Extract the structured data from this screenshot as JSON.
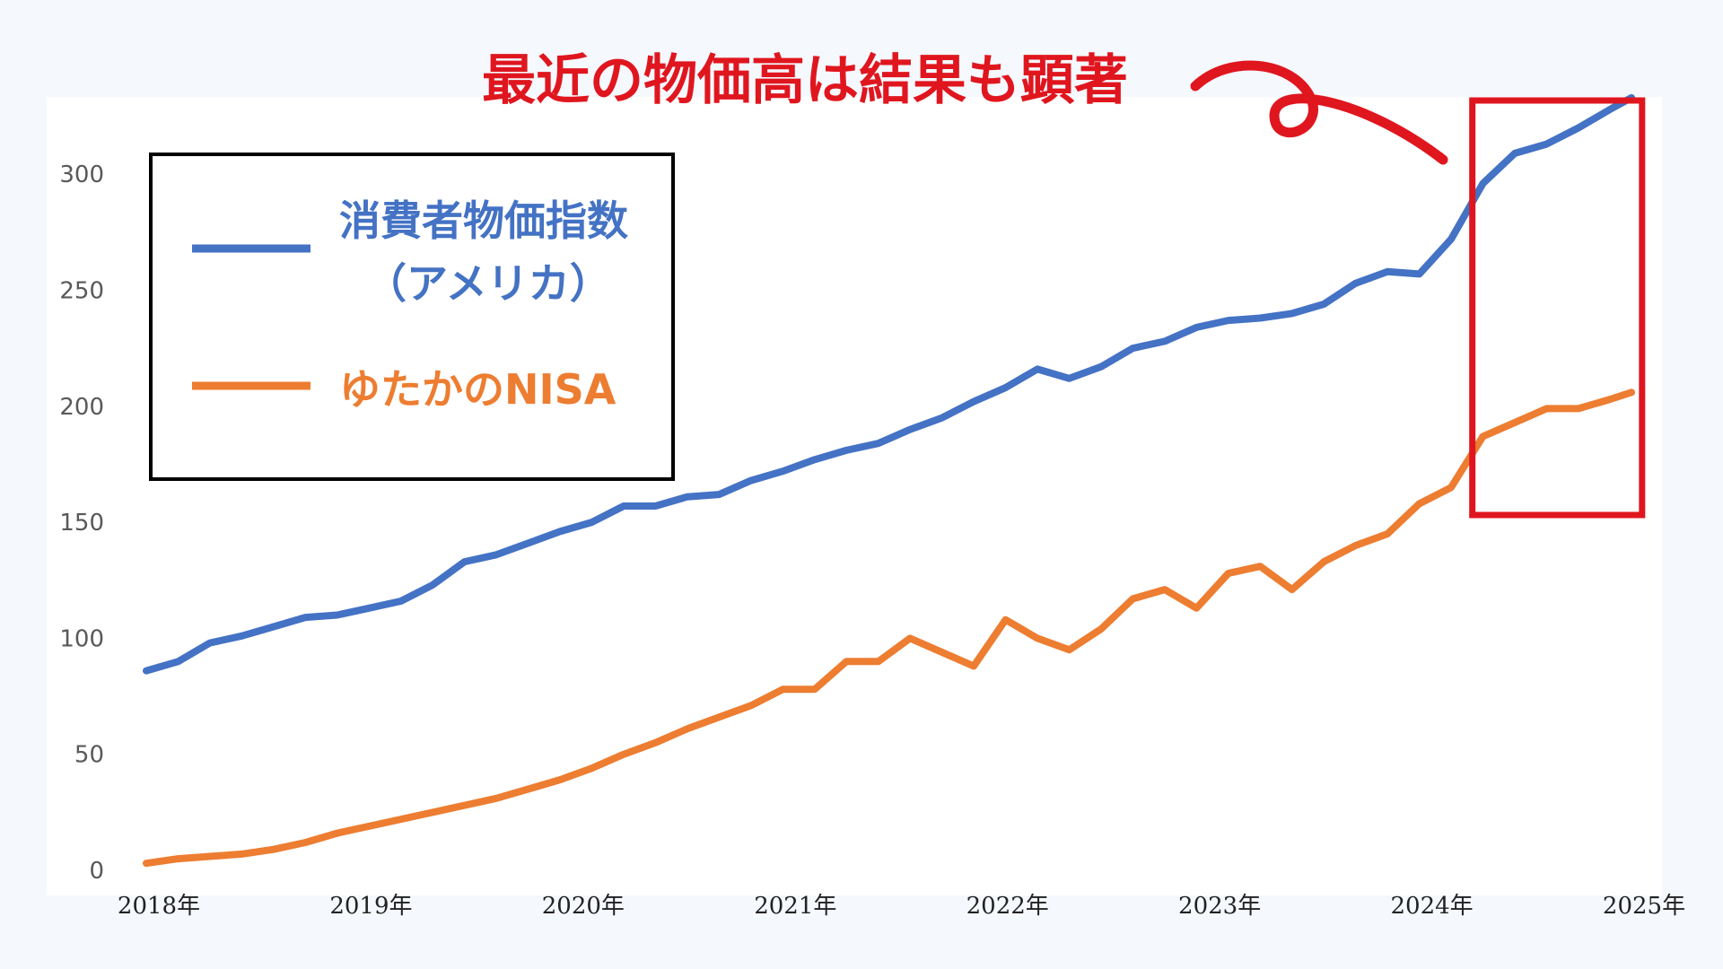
{
  "headline": "最近の物価高は結果も顕著",
  "colors": {
    "cpi": "#4472c4",
    "nisa": "#ed7d31",
    "highlight": "#e0161f",
    "plot_bg": "#ffffff",
    "page_bg": "#f5f8fd"
  },
  "legend": {
    "cpi_line1": "消費者物価指数",
    "cpi_line2": "（アメリカ）",
    "nisa": "ゆたかのNISA"
  },
  "chart_data": {
    "type": "line",
    "title": "",
    "xlabel": "",
    "ylabel": "",
    "categories": [
      "2018年",
      "2019年",
      "2020年",
      "2021年",
      "2022年",
      "2023年",
      "2024年",
      "2025年"
    ],
    "x_range": [
      2018,
      2025
    ],
    "ylim": [
      0,
      330
    ],
    "yticks": [
      "0",
      "50",
      "100",
      "150",
      "200",
      "250",
      "300"
    ],
    "grid": false,
    "legend_position": "top-left",
    "series": [
      {
        "name": "消費者物価指数（アメリカ）",
        "color": "#4472c4",
        "x": [
          2018.0,
          2018.15,
          2018.3,
          2018.45,
          2018.6,
          2018.75,
          2018.9,
          2019.05,
          2019.2,
          2019.35,
          2019.5,
          2019.65,
          2019.8,
          2019.95,
          2020.1,
          2020.25,
          2020.4,
          2020.55,
          2020.7,
          2020.85,
          2021.0,
          2021.15,
          2021.3,
          2021.45,
          2021.6,
          2021.75,
          2021.9,
          2022.05,
          2022.2,
          2022.35,
          2022.5,
          2022.65,
          2022.8,
          2022.95,
          2023.1,
          2023.25,
          2023.4,
          2023.55,
          2023.7,
          2023.85,
          2024.0,
          2024.15,
          2024.3,
          2024.45,
          2024.6,
          2024.75,
          2024.9,
          2025.0
        ],
        "values": [
          86,
          90,
          98,
          101,
          105,
          109,
          110,
          113,
          116,
          123,
          133,
          136,
          141,
          146,
          150,
          157,
          157,
          161,
          162,
          168,
          172,
          177,
          181,
          184,
          190,
          195,
          202,
          208,
          216,
          212,
          217,
          225,
          228,
          234,
          237,
          238,
          240,
          244,
          253,
          258,
          257,
          272,
          296,
          309,
          313,
          320,
          328,
          333
        ]
      },
      {
        "name": "ゆたかのNISA",
        "color": "#ed7d31",
        "x": [
          2018.0,
          2018.15,
          2018.3,
          2018.45,
          2018.6,
          2018.75,
          2018.9,
          2019.05,
          2019.2,
          2019.35,
          2019.5,
          2019.65,
          2019.8,
          2019.95,
          2020.1,
          2020.25,
          2020.4,
          2020.55,
          2020.7,
          2020.85,
          2021.0,
          2021.15,
          2021.3,
          2021.45,
          2021.6,
          2021.75,
          2021.9,
          2022.05,
          2022.2,
          2022.35,
          2022.5,
          2022.65,
          2022.8,
          2022.95,
          2023.1,
          2023.25,
          2023.4,
          2023.55,
          2023.7,
          2023.85,
          2024.0,
          2024.15,
          2024.3,
          2024.45,
          2024.6,
          2024.75,
          2024.9,
          2025.0
        ],
        "values": [
          3,
          5,
          6,
          7,
          9,
          12,
          16,
          19,
          22,
          25,
          28,
          31,
          35,
          39,
          44,
          50,
          55,
          61,
          66,
          71,
          78,
          78,
          90,
          90,
          100,
          94,
          88,
          108,
          100,
          95,
          104,
          117,
          121,
          113,
          128,
          131,
          121,
          133,
          140,
          145,
          158,
          165,
          187,
          193,
          199,
          199,
          203,
          206
        ]
      }
    ],
    "highlight_x_range": [
      2024.25,
      2025.05
    ]
  }
}
